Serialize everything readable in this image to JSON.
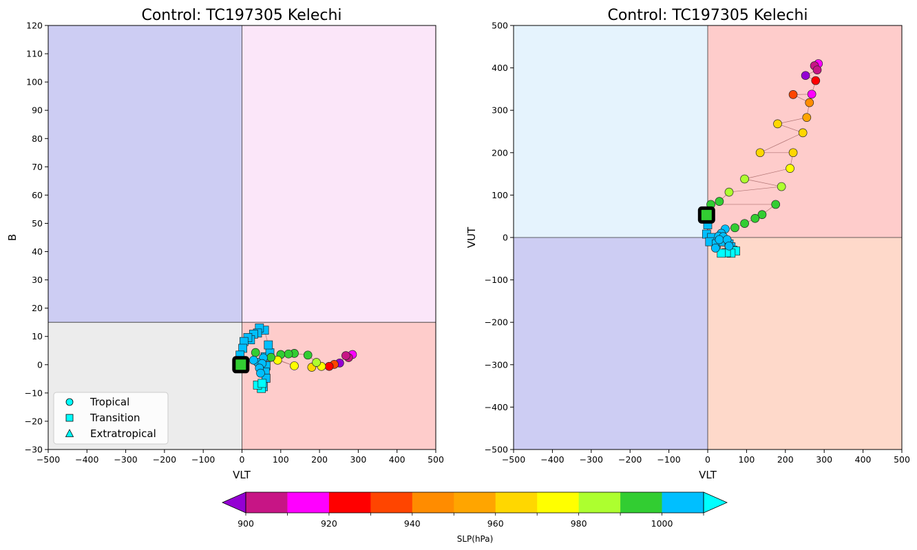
{
  "chart_data": [
    {
      "type": "scatter",
      "title": "Control: TC197305 Kelechi",
      "xlabel": "VLT",
      "ylabel": "B",
      "xlim": [
        -500,
        500
      ],
      "ylim": [
        -30,
        120
      ],
      "xticks": [
        "−500",
        "−400",
        "−300",
        "−200",
        "−100",
        "0",
        "100",
        "200",
        "300",
        "400",
        "500"
      ],
      "yticks": [
        "−30",
        "−20",
        "−10",
        "0",
        "10",
        "20",
        "30",
        "40",
        "50",
        "60",
        "70",
        "80",
        "90",
        "100",
        "110",
        "120"
      ],
      "quadrants": [
        {
          "x": [
            -500,
            0
          ],
          "y": [
            15,
            120
          ],
          "color": "#cdcdf3"
        },
        {
          "x": [
            0,
            500
          ],
          "y": [
            15,
            120
          ],
          "color": "#fbe6f9"
        },
        {
          "x": [
            -500,
            0
          ],
          "y": [
            -30,
            15
          ],
          "color": "#ececec"
        },
        {
          "x": [
            0,
            500
          ],
          "y": [
            -30,
            15
          ],
          "color": "#fecccb"
        }
      ],
      "divider": {
        "x": 0,
        "y": 15
      },
      "legend": {
        "position": "lower-left",
        "entries": [
          {
            "label": "Tropical",
            "marker": "circle"
          },
          {
            "label": "Transition",
            "marker": "square"
          },
          {
            "label": "Extratropical",
            "marker": "triangle"
          }
        ]
      },
      "track": {
        "tropical": [
          [
            285,
            3.6,
            912
          ],
          [
            275,
            2.5,
            902
          ],
          [
            268,
            3.2,
            908
          ],
          [
            252,
            0.6,
            896
          ],
          [
            238,
            0.1,
            932
          ],
          [
            225,
            -0.6,
            928
          ],
          [
            205,
            -0.6,
            970
          ],
          [
            180,
            -0.9,
            962
          ],
          [
            192,
            0.8,
            985
          ],
          [
            170,
            3.4,
            992
          ],
          [
            135,
            4.0,
            992
          ],
          [
            120,
            3.8,
            993
          ],
          [
            100,
            3.6,
            994
          ],
          [
            92,
            1.6,
            975
          ],
          [
            135,
            -0.4,
            973
          ],
          [
            75,
            2.6,
            994
          ],
          [
            35,
            4.3,
            993
          ],
          [
            55,
            2.4,
            1005
          ],
          [
            40,
            0.8,
            1005
          ],
          [
            52,
            0.4,
            1005
          ],
          [
            30,
            1.6,
            1005
          ],
          [
            45,
            -1.2,
            1005
          ],
          [
            48,
            -3.0,
            1005
          ]
        ],
        "transition": [
          [
            60,
            2.8,
            1005
          ],
          [
            72,
            4.2,
            1005
          ],
          [
            68,
            7.0,
            1005
          ],
          [
            58,
            12.2,
            1005
          ],
          [
            45,
            13.0,
            1005
          ],
          [
            40,
            11.2,
            1005
          ],
          [
            30,
            10.8,
            1005
          ],
          [
            22,
            8.8,
            1005
          ],
          [
            15,
            9.6,
            1005
          ],
          [
            5,
            8.2,
            1005
          ],
          [
            2,
            5.8,
            1005
          ],
          [
            -5,
            3.4,
            1005
          ],
          [
            0,
            1.0,
            1005
          ],
          [
            62,
            -0.4,
            1005
          ],
          [
            60,
            -2.6,
            1005
          ],
          [
            62,
            -4.8,
            1005
          ],
          [
            55,
            -7.8,
            1005
          ],
          [
            50,
            -8.4,
            1015
          ],
          [
            40,
            -7.2,
            1015
          ],
          [
            52,
            -6.6,
            1015
          ],
          [
            -3,
            0.0,
            995
          ]
        ],
        "start": [
          -3,
          0.0
        ]
      }
    },
    {
      "type": "scatter",
      "title": "Control: TC197305 Kelechi",
      "xlabel": "VLT",
      "ylabel": "VUT",
      "xlim": [
        -500,
        500
      ],
      "ylim": [
        -500,
        500
      ],
      "xticks": [
        "−500",
        "−400",
        "−300",
        "−200",
        "−100",
        "0",
        "100",
        "200",
        "300",
        "400",
        "500"
      ],
      "yticks": [
        "−500",
        "−400",
        "−300",
        "−200",
        "−100",
        "0",
        "100",
        "200",
        "300",
        "400",
        "500"
      ],
      "quadrants": [
        {
          "x": [
            -500,
            0
          ],
          "y": [
            0,
            500
          ],
          "color": "#e5f3fd"
        },
        {
          "x": [
            0,
            500
          ],
          "y": [
            0,
            500
          ],
          "color": "#fecccb"
        },
        {
          "x": [
            -500,
            0
          ],
          "y": [
            -500,
            0
          ],
          "color": "#cdcdf3"
        },
        {
          "x": [
            0,
            500
          ],
          "y": [
            -500,
            0
          ],
          "color": "#fed9ca"
        }
      ],
      "divider": {
        "x": 0,
        "y": 0
      },
      "track": {
        "tropical": [
          [
            285,
            410,
            912
          ],
          [
            275,
            405,
            902
          ],
          [
            282,
            395,
            902
          ],
          [
            252,
            382,
            896
          ],
          [
            278,
            370,
            928
          ],
          [
            268,
            338,
            913
          ],
          [
            220,
            337,
            935
          ],
          [
            262,
            318,
            945
          ],
          [
            255,
            283,
            955
          ],
          [
            180,
            268,
            965
          ],
          [
            245,
            247,
            965
          ],
          [
            135,
            200,
            965
          ],
          [
            220,
            200,
            965
          ],
          [
            212,
            163,
            975
          ],
          [
            95,
            138,
            985
          ],
          [
            190,
            120,
            985
          ],
          [
            55,
            107,
            985
          ],
          [
            30,
            85,
            995
          ],
          [
            8,
            78,
            995
          ],
          [
            175,
            78,
            995
          ],
          [
            140,
            54,
            995
          ],
          [
            122,
            45,
            995
          ],
          [
            95,
            33,
            995
          ],
          [
            70,
            23,
            995
          ],
          [
            45,
            20,
            1005
          ],
          [
            35,
            10,
            1005
          ],
          [
            28,
            3,
            1005
          ],
          [
            40,
            2,
            1005
          ],
          [
            30,
            -5,
            1005
          ],
          [
            50,
            -5,
            1005
          ],
          [
            55,
            -20,
            1005
          ],
          [
            20,
            -25,
            1005
          ]
        ],
        "transition": [
          [
            0,
            30,
            1005
          ],
          [
            -3,
            8,
            1005
          ],
          [
            10,
            0,
            1005
          ],
          [
            5,
            -10,
            1005
          ],
          [
            22,
            -15,
            1005
          ],
          [
            40,
            -10,
            1005
          ],
          [
            55,
            -15,
            1005
          ],
          [
            60,
            -22,
            1005
          ],
          [
            65,
            -30,
            1015
          ],
          [
            72,
            -32,
            1015
          ],
          [
            60,
            -37,
            1015
          ],
          [
            48,
            -36,
            1015
          ],
          [
            35,
            -37,
            1015
          ],
          [
            -3,
            53,
            995
          ]
        ],
        "start": [
          -3,
          53
        ]
      }
    }
  ],
  "colorbar": {
    "label": "SLP(hPa)",
    "tick_labels": [
      "900",
      "920",
      "940",
      "960",
      "980",
      "1000"
    ],
    "levels": [
      900,
      910,
      920,
      930,
      940,
      950,
      960,
      970,
      980,
      990,
      1000,
      1010
    ],
    "colors": [
      "#c71585",
      "#ff00ff",
      "#ff0000",
      "#ff4500",
      "#ff8c00",
      "#ffa500",
      "#ffd700",
      "#ffff00",
      "#adff2f",
      "#32cd32",
      "#00bfff"
    ],
    "under_color": "#9400d3",
    "over_color": "#00ffff"
  }
}
